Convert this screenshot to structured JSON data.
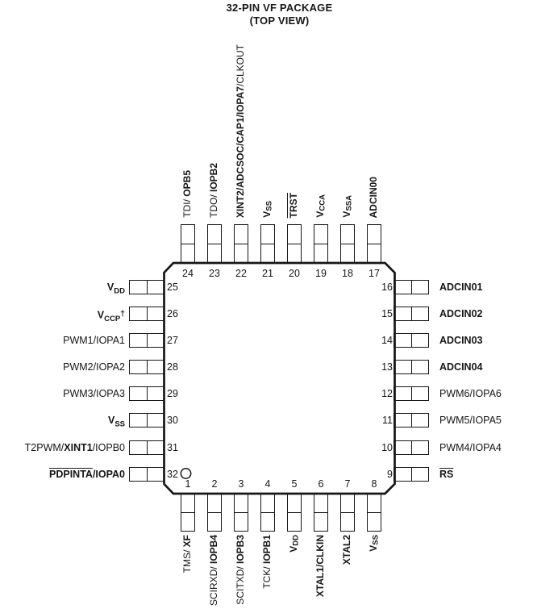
{
  "title": {
    "line1": "32-PIN VF PACKAGE",
    "line2": "(TOP VIEW)"
  },
  "colors": {
    "ink": "#161616",
    "background": "#ffffff"
  },
  "chip": {
    "package": "32-pin quad flat package outline with chamfered corners and index dot near pin 1 corner",
    "pins": {
      "top": [
        {
          "num": "24",
          "segs": [
            {
              "t": "TDI/ "
            },
            {
              "t": "OPB5",
              "b": true
            }
          ]
        },
        {
          "num": "23",
          "segs": [
            {
              "t": "TDO/ "
            },
            {
              "t": "IOPB2",
              "b": true
            }
          ]
        },
        {
          "num": "22",
          "segs": [
            {
              "t": "XINT2/ADCSOC/CAP1/IOPA7",
              "b": true
            },
            {
              "t": "/CLKOUT"
            }
          ]
        },
        {
          "num": "21",
          "segs": [
            {
              "t": "V",
              "b": true
            },
            {
              "t": "SS",
              "b": true,
              "sub": true
            }
          ]
        },
        {
          "num": "20",
          "segs": [
            {
              "t": "TRST",
              "b": true,
              "over": true
            }
          ]
        },
        {
          "num": "19",
          "segs": [
            {
              "t": "V",
              "b": true
            },
            {
              "t": "CCA",
              "b": true,
              "sub": true
            }
          ]
        },
        {
          "num": "18",
          "segs": [
            {
              "t": "V",
              "b": true
            },
            {
              "t": "SSA",
              "b": true,
              "sub": true
            }
          ]
        },
        {
          "num": "17",
          "segs": [
            {
              "t": "ADCIN00",
              "b": true
            }
          ]
        }
      ],
      "right": [
        {
          "num": "16",
          "segs": [
            {
              "t": "ADCIN01",
              "b": true
            }
          ]
        },
        {
          "num": "15",
          "segs": [
            {
              "t": "ADCIN02",
              "b": true
            }
          ]
        },
        {
          "num": "14",
          "segs": [
            {
              "t": "ADCIN03",
              "b": true
            }
          ]
        },
        {
          "num": "13",
          "segs": [
            {
              "t": "ADCIN04",
              "b": true
            }
          ]
        },
        {
          "num": "12",
          "segs": [
            {
              "t": "PWM6/IOPA6"
            }
          ]
        },
        {
          "num": "11",
          "segs": [
            {
              "t": "PWM5/IOPA5"
            }
          ]
        },
        {
          "num": "10",
          "segs": [
            {
              "t": "PWM4/IOPA4"
            }
          ]
        },
        {
          "num": "9",
          "segs": [
            {
              "t": "RS",
              "b": true,
              "over": true
            }
          ]
        }
      ],
      "bottom": [
        {
          "num": "1",
          "segs": [
            {
              "t": "TMS/ "
            },
            {
              "t": "XF",
              "b": true
            }
          ]
        },
        {
          "num": "2",
          "segs": [
            {
              "t": "SCIRXD/ "
            },
            {
              "t": "IOPB4",
              "b": true
            }
          ]
        },
        {
          "num": "3",
          "segs": [
            {
              "t": "SCITXD/ "
            },
            {
              "t": "IOPB3",
              "b": true
            }
          ]
        },
        {
          "num": "4",
          "segs": [
            {
              "t": "TCK/ "
            },
            {
              "t": "IOPB1",
              "b": true
            }
          ]
        },
        {
          "num": "5",
          "segs": [
            {
              "t": "V",
              "b": true
            },
            {
              "t": "DD",
              "b": true,
              "sub": true
            }
          ]
        },
        {
          "num": "6",
          "segs": [
            {
              "t": "XTAL1/CLKIN",
              "b": true
            }
          ]
        },
        {
          "num": "7",
          "segs": [
            {
              "t": "XTAL2",
              "b": true
            }
          ]
        },
        {
          "num": "8",
          "segs": [
            {
              "t": "V",
              "b": true
            },
            {
              "t": "SS",
              "b": true,
              "sub": true
            }
          ]
        }
      ],
      "left": [
        {
          "num": "25",
          "segs": [
            {
              "t": "V",
              "b": true
            },
            {
              "t": "DD",
              "b": true,
              "sub": true
            }
          ]
        },
        {
          "num": "26",
          "segs": [
            {
              "t": "V",
              "b": true
            },
            {
              "t": "CCP",
              "b": true,
              "sub": true
            },
            {
              "t": "†",
              "b": true,
              "sup": true
            }
          ]
        },
        {
          "num": "27",
          "segs": [
            {
              "t": "PWM1/IOPA1"
            }
          ]
        },
        {
          "num": "28",
          "segs": [
            {
              "t": "PWM2/IOPA2"
            }
          ]
        },
        {
          "num": "29",
          "segs": [
            {
              "t": "PWM3/IOPA3"
            }
          ]
        },
        {
          "num": "30",
          "segs": [
            {
              "t": "V",
              "b": true
            },
            {
              "t": "SS",
              "b": true,
              "sub": true
            }
          ]
        },
        {
          "num": "31",
          "segs": [
            {
              "t": "T2PWM/"
            },
            {
              "t": "XINT1",
              "b": true
            },
            {
              "t": "/IOPB0"
            }
          ]
        },
        {
          "num": "32",
          "segs": [
            {
              "t": "PDPINTA",
              "b": true,
              "over": true
            },
            {
              "t": "/IOPA0",
              "b": true
            }
          ]
        }
      ]
    }
  }
}
